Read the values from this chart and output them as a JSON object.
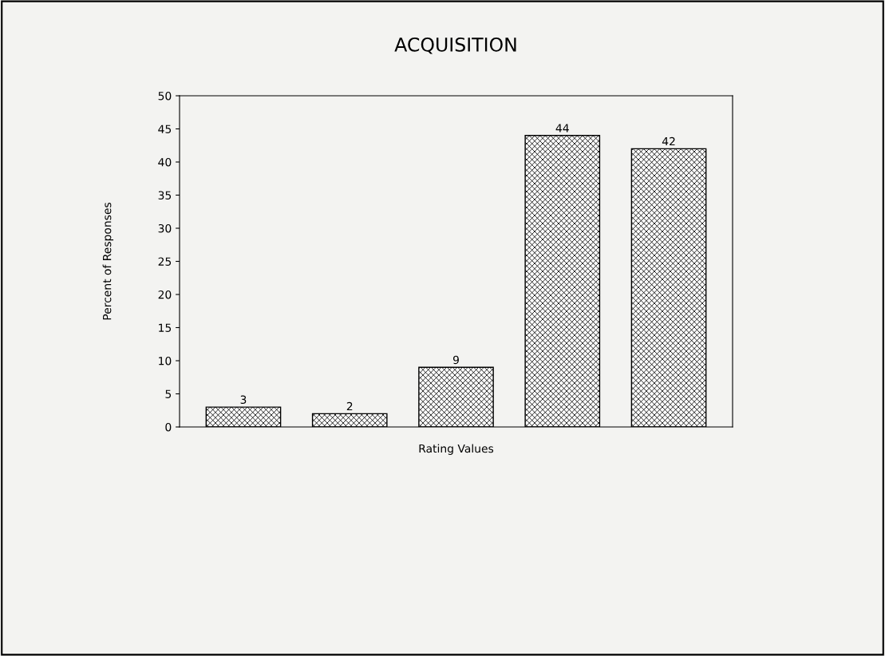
{
  "chart_data": {
    "type": "bar",
    "title": "ACQUISITION",
    "xlabel": "Rating Values",
    "ylabel": "Percent of Responses",
    "categories": [
      null,
      null,
      null,
      null,
      null
    ],
    "values": [
      3,
      2,
      9,
      44,
      42
    ],
    "color": "#000000",
    "ylim": [
      0,
      50
    ],
    "yticks": [
      0,
      5,
      10,
      15,
      20,
      25,
      30,
      35,
      40,
      45,
      50
    ],
    "data_labels": true,
    "grid": false,
    "legend": false
  }
}
